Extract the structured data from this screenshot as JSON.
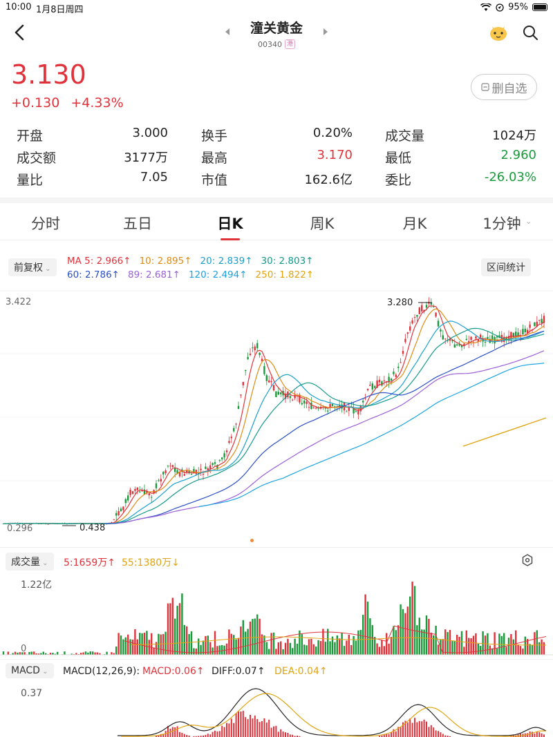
{
  "status_bar": {
    "time": "10:00",
    "date": "1月8日周四",
    "battery": "95%"
  },
  "header": {
    "title": "潼关黄金",
    "code": "00340",
    "market_badge": "港"
  },
  "quote": {
    "price": "3.130",
    "change": "+0.130",
    "change_pct": "+4.33%",
    "watch_button": "删自选"
  },
  "stats": [
    [
      {
        "label": "开盘",
        "value": "3.000",
        "tone": ""
      },
      {
        "label": "换手",
        "value": "0.20%",
        "tone": ""
      },
      {
        "label": "成交量",
        "value": "1024万",
        "tone": ""
      }
    ],
    [
      {
        "label": "成交额",
        "value": "3177万",
        "tone": ""
      },
      {
        "label": "最高",
        "value": "3.170",
        "tone": "red"
      },
      {
        "label": "最低",
        "value": "2.960",
        "tone": "green"
      }
    ],
    [
      {
        "label": "量比",
        "value": "7.05",
        "tone": ""
      },
      {
        "label": "市值",
        "value": "162.6亿",
        "tone": ""
      },
      {
        "label": "委比",
        "value": "-26.03%",
        "tone": "green"
      }
    ]
  ],
  "tabs": [
    "分时",
    "五日",
    "日K",
    "周K",
    "月K",
    "1分钟"
  ],
  "active_tab": "日K",
  "ma_legend": {
    "adjust": "前复权",
    "range_stats": "区间统计",
    "items": [
      {
        "text": "MA 5: 2.966↑",
        "color": "#e0323b"
      },
      {
        "text": "10: 2.895↑",
        "color": "#e08a12"
      },
      {
        "text": "20: 2.839↑",
        "color": "#1a9fd0"
      },
      {
        "text": "30: 2.803↑",
        "color": "#139a8a"
      },
      {
        "text": "60: 2.786↑",
        "color": "#2a4fc7"
      },
      {
        "text": "89: 2.681↑",
        "color": "#9b5fd8"
      },
      {
        "text": "120: 2.494↑",
        "color": "#1aa3e0"
      },
      {
        "text": "250: 1.822↑",
        "color": "#e0a412"
      }
    ]
  },
  "kline": {
    "y_max_label": "3.422",
    "y_min_label": "0.296",
    "high_marker": "3.280",
    "low_marker": "0.438"
  },
  "volume": {
    "label": "成交量",
    "ma5": "5:1659万↑",
    "ma55": "55:1380万↓",
    "y_max_label": "1.22亿",
    "y_min_label": "0"
  },
  "macd": {
    "label": "MACD",
    "params": "MACD(12,26,9):",
    "macd": "MACD:0.06↑",
    "diff": "DIFF:0.07↑",
    "dea": "DEA:0.04↑",
    "y_max_label": "0.37"
  },
  "colors": {
    "up": "#e0323b",
    "down": "#1a9a3a",
    "accent": "#e0323b"
  }
}
